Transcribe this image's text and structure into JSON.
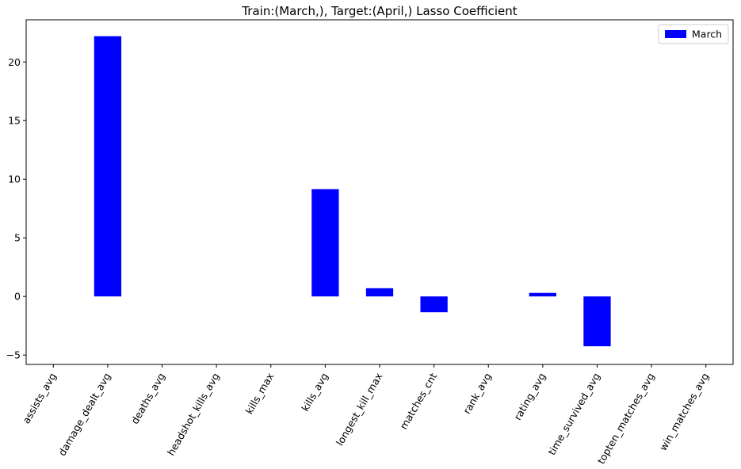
{
  "chart_data": {
    "type": "bar",
    "title": "Train:(March,), Target:(April,) Lasso Coefficient",
    "xlabel": "",
    "ylabel": "",
    "categories": [
      "assists_avg",
      "damage_dealt_avg",
      "deaths_avg",
      "headshot_kills_avg",
      "kills_max",
      "kills_avg",
      "longest_kill_max",
      "matches_cnt",
      "rank_avg",
      "rating_avg",
      "time_survived_avg",
      "topten_matches_avg",
      "win_matches_avg"
    ],
    "series": [
      {
        "name": "March",
        "color": "#0000ff",
        "values": [
          0,
          22.2,
          0,
          0,
          0,
          9.15,
          0.7,
          -1.35,
          0,
          0.3,
          -4.25,
          0,
          0
        ]
      }
    ],
    "ylim": [
      -5.8,
      23.6
    ],
    "yticks": [
      -5,
      0,
      5,
      10,
      15,
      20
    ],
    "legend": {
      "position": "top-right",
      "labels": [
        "March"
      ]
    },
    "grid": false
  }
}
